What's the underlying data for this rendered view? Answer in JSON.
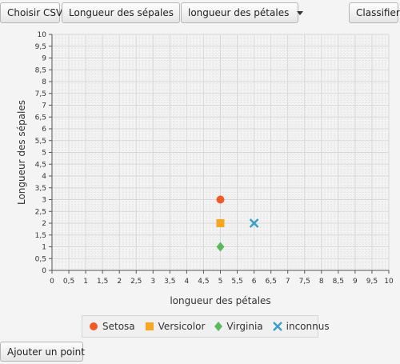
{
  "toolbar": {
    "choose_csv": "Choisir CSV",
    "x_select": "Longueur des sépales",
    "y_select": "longueur des pétales",
    "classify": "Classifier"
  },
  "bottom": {
    "add_point": "Ajouter un point"
  },
  "colors": {
    "setosa": "#f05a28",
    "versicolor": "#f5a623",
    "virginia": "#5cb85c",
    "unknown": "#3aa0c8"
  },
  "chart_data": {
    "type": "scatter",
    "xlabel": "longueur des pétales",
    "ylabel": "Longueur des sépales",
    "xlim": [
      0,
      10
    ],
    "ylim": [
      0,
      10
    ],
    "ticks": [
      "0",
      "0,5",
      "1",
      "1,5",
      "2",
      "2,5",
      "3",
      "3,5",
      "4",
      "4,5",
      "5",
      "5,5",
      "6",
      "6,5",
      "7",
      "7,5",
      "8",
      "8,5",
      "9",
      "9,5",
      "10"
    ],
    "grid": true,
    "legend_position": "bottom",
    "series": [
      {
        "name": "Setosa",
        "marker": "circle",
        "color": "#f05a28",
        "points": [
          [
            5,
            3
          ]
        ]
      },
      {
        "name": "Versicolor",
        "marker": "square",
        "color": "#f5a623",
        "points": [
          [
            5,
            2
          ]
        ]
      },
      {
        "name": "Virginia",
        "marker": "diamond",
        "color": "#5cb85c",
        "points": [
          [
            5,
            1
          ]
        ]
      },
      {
        "name": "inconnus",
        "marker": "cross",
        "color": "#3aa0c8",
        "points": [
          [
            6,
            2
          ]
        ]
      }
    ]
  }
}
